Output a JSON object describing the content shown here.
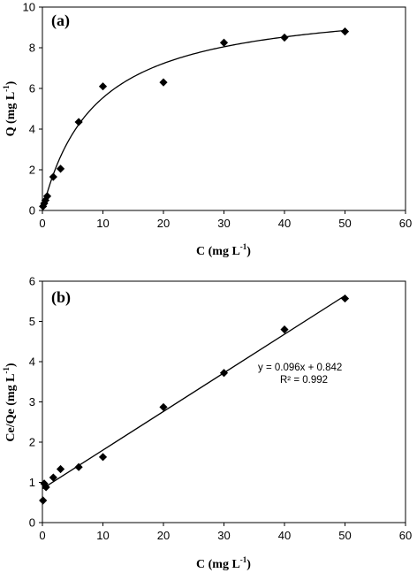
{
  "chart_data": [
    {
      "type": "scatter",
      "panel_label": "(a)",
      "xlabel": "C (mg L",
      "xlabel_sup": "-1",
      "xlabel_tail": ")",
      "ylabel": "Q (mg L",
      "ylabel_sup": "-1",
      "ylabel_tail": ")",
      "xlim": [
        0,
        60
      ],
      "ylim": [
        0,
        10
      ],
      "xticks": [
        0,
        10,
        20,
        30,
        40,
        50,
        60
      ],
      "yticks": [
        0,
        2,
        4,
        6,
        8,
        10
      ],
      "grid": false,
      "series": [
        {
          "marker": "diamond",
          "x": [
            0.1,
            0.3,
            0.5,
            0.8,
            1.8,
            3.0,
            6.0,
            10.0,
            20.0,
            30.0,
            40.0,
            50.0
          ],
          "y": [
            0.2,
            0.35,
            0.5,
            0.7,
            1.65,
            2.05,
            4.35,
            6.1,
            6.3,
            8.25,
            8.5,
            8.8
          ]
        }
      ],
      "fit": {
        "type": "langmuir",
        "qmax": 10.4,
        "kl": 0.114,
        "x_range": [
          0,
          50
        ]
      }
    },
    {
      "type": "scatter",
      "panel_label": "(b)",
      "xlabel": "C (mg L",
      "xlabel_sup": "-1",
      "xlabel_tail": ")",
      "ylabel": "Ce/Qe (mg L",
      "ylabel_sup": "-1",
      "ylabel_tail": ")",
      "xlim": [
        0,
        60
      ],
      "ylim": [
        0,
        6
      ],
      "xticks": [
        0,
        10,
        20,
        30,
        40,
        50,
        60
      ],
      "yticks": [
        0,
        1,
        2,
        3,
        4,
        5,
        6
      ],
      "grid": false,
      "series": [
        {
          "marker": "diamond",
          "x": [
            0.1,
            0.3,
            0.6,
            1.8,
            3.0,
            6.0,
            10.0,
            20.0,
            30.0,
            40.0,
            50.0
          ],
          "y": [
            0.55,
            0.97,
            0.88,
            1.12,
            1.33,
            1.38,
            1.63,
            2.87,
            3.72,
            4.8,
            5.57
          ]
        }
      ],
      "fit": {
        "type": "linear",
        "slope": 0.096,
        "intercept": 0.842,
        "x_range": [
          0,
          50
        ]
      },
      "annotations": [
        "y = 0.096x + 0.842",
        "R² = 0.992"
      ]
    }
  ]
}
